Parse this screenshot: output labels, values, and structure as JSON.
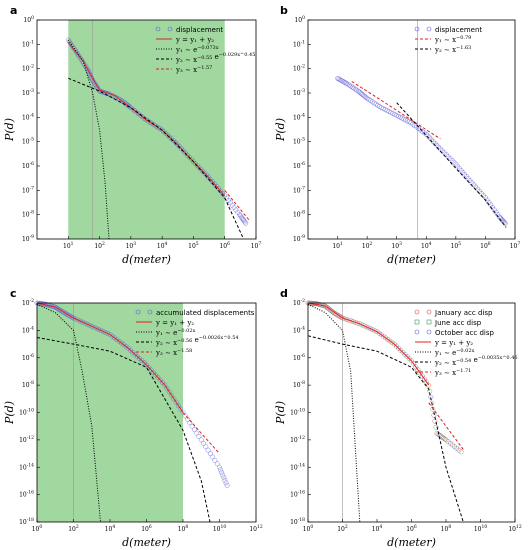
{
  "colors": {
    "shade": "#8fd18f",
    "marker_blue": "#5b5bd6",
    "marker_red": "#e04040",
    "marker_green": "#3a9a5a",
    "fit_red": "#e02020",
    "black": "#000000",
    "vline": "#999999"
  },
  "chart_data": [
    {
      "panel": "a",
      "type": "scatter",
      "xscale": "log",
      "yscale": "log",
      "xlim": [
        1,
        10000000
      ],
      "ylim": [
        1e-09,
        1
      ],
      "xticks": [
        "10^1",
        "10^2",
        "10^3",
        "10^4",
        "10^5",
        "10^6",
        "10^7"
      ],
      "yticks": [
        "10^0",
        "10^-1",
        "10^-2",
        "10^-3",
        "10^-4",
        "10^-5",
        "10^-6",
        "10^-7",
        "10^-8",
        "10^-9"
      ],
      "xlabel": "d(meter)",
      "ylabel": "P(d)",
      "shaded_region": [
        10,
        1000000
      ],
      "vlines": [
        60
      ],
      "legend": [
        {
          "label": "displacement",
          "style": "circle-blue"
        },
        {
          "label": "y = y₁ + y₂",
          "style": "line-red"
        },
        {
          "label": "y₁ ∼ e^−0.073x",
          "style": "dashdot-black"
        },
        {
          "label": "y₂ ∼ x^−0.55 e^−0.029x^0.45",
          "style": "dash-black"
        },
        {
          "label": "y₃ ∼ x^−1.57",
          "style": "dash-red"
        }
      ],
      "series": [
        {
          "style": "circles",
          "x": [
            10,
            20,
            40,
            60,
            100,
            200,
            500,
            1000,
            3000,
            10000,
            30000,
            100000,
            300000,
            1000000,
            3000000,
            5000000
          ],
          "y": [
            0.15,
            0.04,
            0.01,
            0.0033,
            0.0012,
            0.0009,
            0.0005,
            0.00025,
            8e-05,
            3e-05,
            8e-06,
            1.5e-06,
            3.5e-07,
            6e-08,
            1e-08,
            4e-09
          ]
        },
        {
          "style": "fit",
          "x": [
            10,
            30,
            60,
            100,
            300,
            1000,
            3000,
            10000,
            30000,
            100000,
            300000,
            1000000
          ],
          "y": [
            0.12,
            0.02,
            0.004,
            0.0013,
            0.0008,
            0.00025,
            8e-05,
            3e-05,
            8e-06,
            1.5e-06,
            3.5e-07,
            6e-08
          ]
        },
        {
          "style": "dashdot",
          "x": [
            10,
            30,
            60,
            100,
            150,
            200
          ],
          "y": [
            0.15,
            0.02,
            0.001,
            3e-05,
            2e-07,
            1e-09
          ]
        },
        {
          "style": "dash",
          "x": [
            10,
            100,
            1000,
            10000,
            100000,
            1000000,
            2000000,
            4000000
          ],
          "y": [
            0.004,
            0.0012,
            0.00025,
            3e-05,
            1.5e-06,
            5e-08,
            7e-09,
            1e-09
          ]
        },
        {
          "style": "dash-red",
          "x": [
            1000000,
            3000000,
            6000000
          ],
          "y": [
            1e-07,
            1.8e-08,
            6e-09
          ]
        }
      ]
    },
    {
      "panel": "b",
      "type": "scatter",
      "xscale": "log",
      "yscale": "log",
      "xlim": [
        1,
        10000000
      ],
      "ylim": [
        1e-09,
        1
      ],
      "xticks": [
        "10^1",
        "10^2",
        "10^3",
        "10^4",
        "10^5",
        "10^6",
        "10^7"
      ],
      "yticks": [
        "10^0",
        "10^-1",
        "10^-2",
        "10^-3",
        "10^-4",
        "10^-5",
        "10^-6",
        "10^-7",
        "10^-8",
        "10^-9"
      ],
      "xlabel": "d(meter)",
      "ylabel": "P(d)",
      "vlines": [
        5000
      ],
      "legend": [
        {
          "label": "displacement",
          "style": "circle-blue"
        },
        {
          "label": "y₁ ∼ x^−0.79",
          "style": "dash-red"
        },
        {
          "label": "y₂ ∼ x^−1.63",
          "style": "dash-black"
        }
      ],
      "series": [
        {
          "style": "circles",
          "x": [
            10,
            20,
            50,
            100,
            300,
            1000,
            3000,
            10000,
            30000,
            100000,
            300000,
            1000000,
            3000000,
            5000000
          ],
          "y": [
            0.004,
            0.0025,
            0.0012,
            0.0006,
            0.00025,
            0.00012,
            6e-05,
            2e-05,
            5e-06,
            1.2e-06,
            2.5e-07,
            5e-08,
            8e-09,
            4e-09
          ]
        },
        {
          "style": "dash-red",
          "x": [
            30,
            300,
            3000,
            30000
          ],
          "y": [
            0.003,
            0.0005,
            8e-05,
            1.3e-05
          ]
        },
        {
          "style": "dash",
          "x": [
            1000,
            10000,
            100000,
            1000000,
            5000000
          ],
          "y": [
            0.0004,
            1.8e-05,
            8e-07,
            4e-08,
            3e-09
          ]
        }
      ]
    },
    {
      "panel": "c",
      "type": "scatter",
      "xscale": "log",
      "yscale": "log",
      "xlim": [
        1,
        1000000000000
      ],
      "ylim": [
        1e-18,
        0.01
      ],
      "xticks": [
        "10^0",
        "10^2",
        "10^4",
        "10^6",
        "10^8",
        "10^10",
        "10^12"
      ],
      "yticks": [
        "10^-2",
        "10^-4",
        "10^-6",
        "10^-8",
        "10^-10",
        "10^-12",
        "10^-14",
        "10^-16",
        "10^-18"
      ],
      "xlabel": "d(meter)",
      "ylabel": "P(d)",
      "shaded_region": [
        1,
        100000000
      ],
      "vlines": [
        100
      ],
      "legend": [
        {
          "label": "accumulated displacements",
          "style": "circle-blue"
        },
        {
          "label": "y = y₁ + y₂",
          "style": "line-red"
        },
        {
          "label": "y₁ ∼ e^−0.02x",
          "style": "dashdot-black"
        },
        {
          "label": "y₂ ∼ x^−0.56 e^−0.0026x^0.54",
          "style": "dash-black"
        },
        {
          "label": "y₃ ∼ x^−1.58",
          "style": "dash-red"
        }
      ],
      "series": [
        {
          "style": "circles",
          "x": [
            1,
            3,
            10,
            30,
            100,
            1000,
            10000,
            100000,
            1000000,
            10000000,
            100000000,
            1000000000,
            10000000000,
            30000000000
          ],
          "y": [
            0.01,
            0.008,
            0.005,
            0.002,
            0.0008,
            0.0002,
            5e-05,
            5e-06,
            3e-07,
            1e-08,
            1e-10,
            1e-12,
            1e-14,
            3e-16
          ]
        },
        {
          "style": "fit",
          "x": [
            1,
            10,
            100,
            1000,
            10000,
            100000,
            1000000,
            10000000,
            100000000
          ],
          "y": [
            0.01,
            0.005,
            0.0008,
            0.0002,
            5e-05,
            5e-06,
            3e-07,
            1e-08,
            1e-10
          ]
        },
        {
          "style": "dashdot",
          "x": [
            1,
            10,
            100,
            300,
            1000,
            3000
          ],
          "y": [
            0.008,
            0.002,
            0.0001,
            1e-07,
            1e-11,
            1e-18
          ]
        },
        {
          "style": "dash",
          "x": [
            1,
            100,
            10000,
            1000000,
            100000000,
            1000000000,
            3000000000
          ],
          "y": [
            3e-05,
            1e-05,
            3e-06,
            2e-07,
            5e-12,
            1e-15,
            1e-18
          ]
        },
        {
          "style": "dash-red",
          "x": [
            100000000,
            1000000000,
            10000000000
          ],
          "y": [
            1e-10,
            3e-12,
            1e-13
          ]
        }
      ]
    },
    {
      "panel": "d",
      "type": "scatter",
      "xscale": "log",
      "yscale": "log",
      "xlim": [
        1,
        1000000000000
      ],
      "ylim": [
        1e-18,
        0.01
      ],
      "xticks": [
        "10^0",
        "10^2",
        "10^4",
        "10^6",
        "10^8",
        "10^10",
        "10^12"
      ],
      "yticks": [
        "10^-2",
        "10^-4",
        "10^-6",
        "10^-8",
        "10^-10",
        "10^-12",
        "10^-14",
        "10^-16",
        "10^-18"
      ],
      "xlabel": "d(meter)",
      "ylabel": "P(d)",
      "vlines": [
        100
      ],
      "legend": [
        {
          "label": "January acc disp",
          "style": "circle-red"
        },
        {
          "label": "June acc disp",
          "style": "square-green"
        },
        {
          "label": "October acc disp",
          "style": "circle-blue"
        },
        {
          "label": "y = y₁ + y₂",
          "style": "line-red"
        },
        {
          "label": "y₁ ∼ e^−0.02x",
          "style": "dashdot-black"
        },
        {
          "label": "y₂ ∼ x^−0.54 e^−0.0035x^0.46",
          "style": "dash-black"
        },
        {
          "label": "y₃ ∼ x^−1.71",
          "style": "dash-red"
        }
      ],
      "series": [
        {
          "style": "circles",
          "x": [
            1,
            3,
            10,
            30,
            100,
            1000,
            10000,
            100000,
            1000000,
            10000000,
            30000000,
            100000000,
            1000000000
          ],
          "y": [
            0.01,
            0.009,
            0.006,
            0.002,
            0.0008,
            0.0003,
            8e-05,
            1e-05,
            6e-07,
            1e-08,
            3e-12,
            1e-12,
            1e-13
          ]
        },
        {
          "style": "fit",
          "x": [
            1,
            10,
            100,
            1000,
            10000,
            100000,
            1000000,
            10000000
          ],
          "y": [
            0.01,
            0.006,
            0.0008,
            0.0003,
            8e-05,
            1e-05,
            6e-07,
            1e-08
          ]
        },
        {
          "style": "dashdot",
          "x": [
            1,
            10,
            100,
            300,
            1000
          ],
          "y": [
            0.008,
            0.002,
            0.0001,
            1e-07,
            1e-18
          ]
        },
        {
          "style": "dash",
          "x": [
            1,
            100,
            10000,
            1000000,
            10000000,
            100000000,
            1000000000
          ],
          "y": [
            4e-05,
            1e-05,
            3e-06,
            2e-07,
            5e-09,
            1e-14,
            1e-18
          ]
        },
        {
          "style": "dash-red",
          "x": [
            10000000,
            100000000,
            1000000000
          ],
          "y": [
            5e-10,
            1e-11,
            2e-13
          ]
        }
      ]
    }
  ]
}
